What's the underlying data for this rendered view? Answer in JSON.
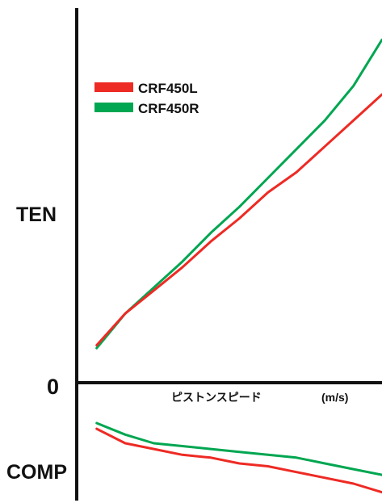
{
  "chart_data": {
    "type": "line",
    "title": "",
    "xlabel": "ピストンスピード",
    "xunit": "(m/s)",
    "ylabel_positive": "TEN",
    "ylabel_negative": "COMP",
    "zero_label": "0",
    "legend_position": "top-left",
    "x": [
      0,
      0.1,
      0.2,
      0.3,
      0.4,
      0.5,
      0.6,
      0.7,
      0.8,
      0.9,
      1.0
    ],
    "xlim": [
      -0.07,
      1.0
    ],
    "ylim": [
      -0.55,
      1.45
    ],
    "series": [
      {
        "name": "CRF450L",
        "color": "#ee2a24",
        "tension": [
          0.13,
          0.24,
          0.32,
          0.4,
          0.49,
          0.57,
          0.66,
          0.73,
          0.82,
          0.91,
          1.0
        ],
        "compression": [
          -0.16,
          -0.21,
          -0.23,
          -0.25,
          -0.26,
          -0.28,
          -0.29,
          -0.31,
          -0.33,
          -0.35,
          -0.38
        ]
      },
      {
        "name": "CRF450R",
        "color": "#00a651",
        "tension": [
          0.12,
          0.24,
          0.33,
          0.42,
          0.52,
          0.61,
          0.71,
          0.81,
          0.91,
          1.03,
          1.19
        ],
        "compression": [
          -0.14,
          -0.18,
          -0.21,
          -0.22,
          -0.23,
          -0.24,
          -0.25,
          -0.26,
          -0.28,
          -0.3,
          -0.32
        ]
      }
    ]
  }
}
